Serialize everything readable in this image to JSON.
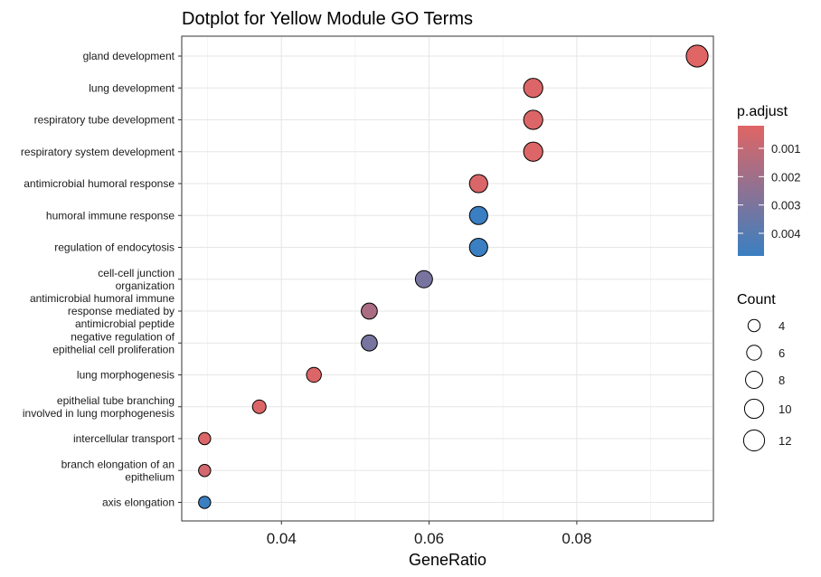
{
  "chart_data": {
    "type": "scatter",
    "title": "Dotplot for Yellow Module GO Terms",
    "xlabel": "GeneRatio",
    "ylabel": "",
    "xlim": [
      0.0265,
      0.0985
    ],
    "x_ticks": [
      0.04,
      0.06,
      0.08
    ],
    "x_tick_labels": [
      "0.04",
      "0.06",
      "0.08"
    ],
    "grid": true,
    "legend_position": "right",
    "categories": [
      "gland development",
      "lung development",
      "respiratory tube development",
      "respiratory system development",
      "antimicrobial humoral response",
      "humoral immune response",
      "regulation of endocytosis",
      "cell-cell junction\norganization",
      "antimicrobial humoral immune\nresponse mediated by\nantimicrobial peptide",
      "negative regulation of\nepithelial cell proliferation",
      "lung morphogenesis",
      "epithelial tube branching\ninvolved in lung morphogenesis",
      "intercellular transport",
      "branch elongation of an\nepithelium",
      "axis elongation"
    ],
    "points": [
      {
        "term": "gland development",
        "gene_ratio": 0.0963,
        "count": 13,
        "p_adjust": 0.0002
      },
      {
        "term": "lung development",
        "gene_ratio": 0.0741,
        "count": 10,
        "p_adjust": 0.0003
      },
      {
        "term": "respiratory tube development",
        "gene_ratio": 0.0741,
        "count": 10,
        "p_adjust": 0.0003
      },
      {
        "term": "respiratory system development",
        "gene_ratio": 0.0741,
        "count": 10,
        "p_adjust": 0.0003
      },
      {
        "term": "antimicrobial humoral response",
        "gene_ratio": 0.0667,
        "count": 9,
        "p_adjust": 0.0004
      },
      {
        "term": "humoral immune response",
        "gene_ratio": 0.0667,
        "count": 9,
        "p_adjust": 0.0048
      },
      {
        "term": "regulation of endocytosis",
        "gene_ratio": 0.0667,
        "count": 9,
        "p_adjust": 0.0048
      },
      {
        "term": "cell-cell junction organization",
        "gene_ratio": 0.0593,
        "count": 8,
        "p_adjust": 0.0031
      },
      {
        "term": "antimicrobial humoral immune response mediated by antimicrobial peptide",
        "gene_ratio": 0.0519,
        "count": 7,
        "p_adjust": 0.0017
      },
      {
        "term": "negative regulation of epithelial cell proliferation",
        "gene_ratio": 0.0519,
        "count": 7,
        "p_adjust": 0.0031
      },
      {
        "term": "lung morphogenesis",
        "gene_ratio": 0.0444,
        "count": 6,
        "p_adjust": 0.0003
      },
      {
        "term": "epithelial tube branching involved in lung morphogenesis",
        "gene_ratio": 0.037,
        "count": 5,
        "p_adjust": 0.0003
      },
      {
        "term": "intercellular transport",
        "gene_ratio": 0.0296,
        "count": 4,
        "p_adjust": 0.0003
      },
      {
        "term": "branch elongation of an epithelium",
        "gene_ratio": 0.0296,
        "count": 4,
        "p_adjust": 0.0006
      },
      {
        "term": "axis elongation",
        "gene_ratio": 0.0296,
        "count": 4,
        "p_adjust": 0.0048
      }
    ],
    "color_legend": {
      "title": "p.adjust",
      "low_color": "#E06565",
      "high_color": "#3A7FC1",
      "range": [
        0.0002,
        0.0048
      ],
      "ticks": [
        0.001,
        0.002,
        0.003,
        0.004
      ],
      "tick_labels": [
        "0.001",
        "0.002",
        "0.003",
        "0.004"
      ]
    },
    "size_legend": {
      "title": "Count",
      "values": [
        4,
        6,
        8,
        10,
        12
      ],
      "labels": [
        "4",
        "6",
        "8",
        "10",
        "12"
      ]
    }
  }
}
